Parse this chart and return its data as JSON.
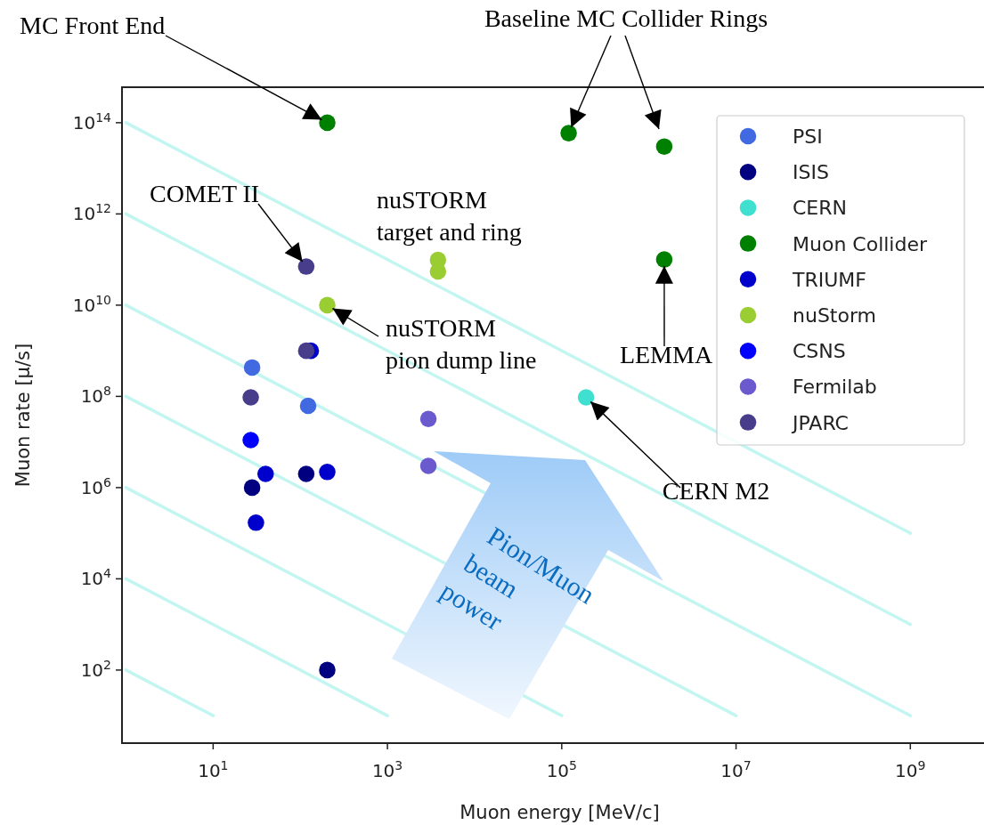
{
  "chart_data": {
    "type": "scatter",
    "xlabel": "Muon energy [MeV/c]",
    "ylabel": "Muon rate [μ/s]",
    "log": "xy",
    "xlim": [
      0.9,
      7000000000
    ],
    "ylim": [
      2.5,
      600000000000000
    ],
    "xticks": [
      {
        "value": 10,
        "label": "10$^{1}$"
      },
      {
        "value": 1000,
        "label": "10$^{3}$"
      },
      {
        "value": 100000,
        "label": "10$^{5}$"
      },
      {
        "value": 10000000,
        "label": "10$^{7}$"
      },
      {
        "value": 1000000000,
        "label": "10$^{9}$"
      }
    ],
    "yticks": [
      {
        "value": 100,
        "label": "10$^{2}$"
      },
      {
        "value": 10000,
        "label": "10$^{4}$"
      },
      {
        "value": 1000000,
        "label": "10$^{6}$"
      },
      {
        "value": 100000000,
        "label": "10$^{8}$"
      },
      {
        "value": 10000000000,
        "label": "10$^{10}$"
      },
      {
        "value": 1000000000000,
        "label": "10$^{12}$"
      },
      {
        "value": 100000000000000,
        "label": "10$^{14}$"
      }
    ],
    "grid": false,
    "legend": "top right",
    "marker": "circle",
    "series": [
      {
        "type": "line",
        "marker": "none",
        "color": "#b4f2ee",
        "x": [
          1,
          10
        ],
        "values": [
          100,
          10
        ]
      },
      {
        "type": "line",
        "marker": "none",
        "color": "#b4f2ee",
        "x": [
          1,
          1000
        ],
        "values": [
          10000,
          10
        ]
      },
      {
        "type": "line",
        "marker": "none",
        "color": "#b4f2ee",
        "x": [
          1,
          100000
        ],
        "values": [
          1000000,
          10
        ]
      },
      {
        "type": "line",
        "marker": "none",
        "color": "#b4f2ee",
        "x": [
          1,
          10000000
        ],
        "values": [
          100000000,
          10
        ]
      },
      {
        "type": "line",
        "marker": "none",
        "color": "#b4f2ee",
        "x": [
          1,
          1000000000
        ],
        "values": [
          10000000000,
          10
        ]
      },
      {
        "type": "line",
        "marker": "none",
        "color": "#b4f2ee",
        "x": [
          1,
          1000000000
        ],
        "values": [
          1000000000000,
          1000
        ]
      },
      {
        "type": "line",
        "marker": "none",
        "color": "#b4f2ee",
        "x": [
          1,
          1000000000
        ],
        "values": [
          100000000000000,
          100000
        ]
      },
      {
        "name": "PSI",
        "color": "#4169e1",
        "x": [
          28,
          123
        ],
        "values": [
          430000000,
          62000000
        ]
      },
      {
        "name": "ISIS",
        "color": "#000080",
        "x": [
          28,
          117,
          204
        ],
        "values": [
          1000000,
          2000000,
          100
        ]
      },
      {
        "name": "CERN",
        "color": "#40e0d0",
        "x": [
          190000
        ],
        "values": [
          95000000
        ]
      },
      {
        "name": "Muon Collider",
        "color": "#008000",
        "x": [
          204,
          120000,
          1500000,
          1500000
        ],
        "values": [
          100000000000000,
          59000000000000,
          30000000000000,
          100000000000
        ]
      },
      {
        "name": "TRIUMF",
        "color": "#0000cd",
        "x": [
          40,
          204,
          31,
          132
        ],
        "values": [
          2000000,
          2200000,
          170000,
          1000000000
        ]
      },
      {
        "name": "nuStorm",
        "color": "#9acd32",
        "x": [
          204,
          3800,
          3800
        ],
        "values": [
          10000000000,
          98000000000,
          55000000000
        ]
      },
      {
        "name": "CSNS",
        "color": "#0000ff",
        "x": [
          27
        ],
        "values": [
          11000000
        ]
      },
      {
        "name": "Fermilab",
        "color": "#6a5acd",
        "x": [
          2950,
          2950
        ],
        "values": [
          32000000,
          3000000
        ]
      },
      {
        "name": "JPARC",
        "color": "#483d8b",
        "x": [
          117,
          117,
          27
        ],
        "values": [
          70000000000,
          1000000000,
          95000000
        ]
      }
    ],
    "annotations": [
      {
        "text": "MC Front End",
        "x": 204,
        "y": 100000000000000
      },
      {
        "text": "Baseline MC Collider Rings",
        "x": 120000,
        "y": 59000000000000
      },
      {
        "text": "COMET II",
        "x": 117,
        "y": 70000000000
      },
      {
        "text": "nuSTORM\ntarget and ring",
        "x": 3800,
        "y": 98000000000
      },
      {
        "text": "nuSTORM\npion dump line",
        "x": 204,
        "y": 10000000000
      },
      {
        "text": "LEMMA",
        "x": 1500000,
        "y": 100000000000
      },
      {
        "text": "CERN M2",
        "x": 190000,
        "y": 95000000
      },
      "Pion/Muon\nbeam\npower"
    ]
  }
}
